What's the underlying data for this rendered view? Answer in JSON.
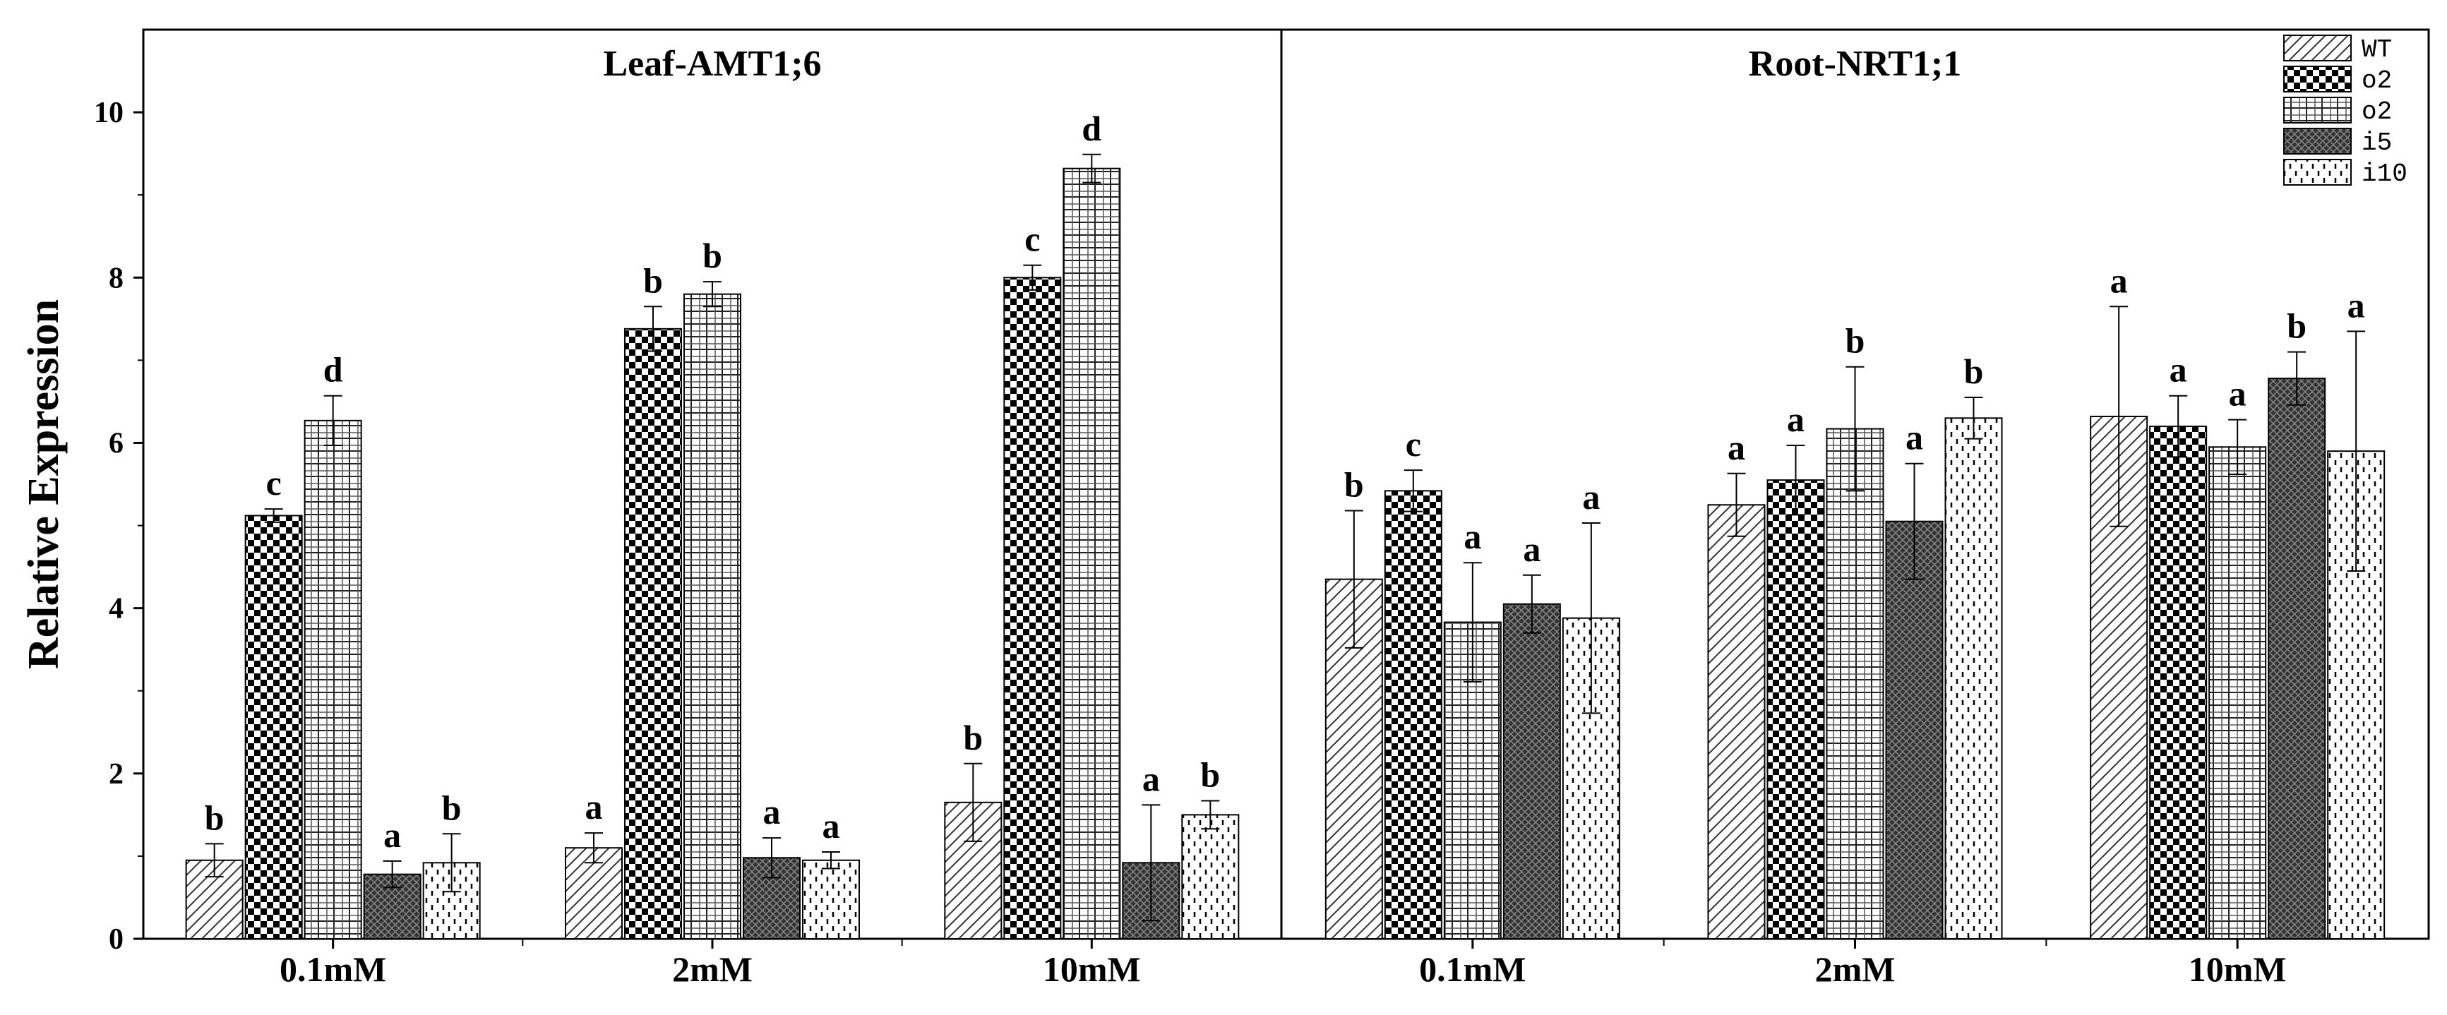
{
  "chart_data": {
    "type": "bar",
    "ylabel": "Relative Expression",
    "ylim": [
      0,
      11
    ],
    "yticks": [
      0,
      2,
      4,
      6,
      8,
      10
    ],
    "categories": [
      "0.1mM",
      "2mM",
      "10mM"
    ],
    "legend": [
      "WT",
      "o2",
      "o2",
      "i5",
      "i10"
    ],
    "legend_position": "top-right",
    "panels": [
      {
        "title": "Leaf-AMT1;6",
        "series": [
          {
            "name": "WT",
            "values": [
              0.95,
              1.1,
              1.65
            ],
            "errors": [
              0.2,
              0.18,
              0.47
            ],
            "labels": [
              "b",
              "a",
              "b"
            ]
          },
          {
            "name": "o2",
            "values": [
              5.12,
              7.38,
              8.0
            ],
            "errors": [
              0.08,
              0.27,
              0.15
            ],
            "labels": [
              "c",
              "b",
              "c"
            ]
          },
          {
            "name": "o2",
            "values": [
              6.27,
              7.8,
              9.32
            ],
            "errors": [
              0.3,
              0.15,
              0.17
            ],
            "labels": [
              "d",
              "b",
              "d"
            ]
          },
          {
            "name": "i5",
            "values": [
              0.78,
              0.98,
              0.92
            ],
            "errors": [
              0.16,
              0.24,
              0.7
            ],
            "labels": [
              "a",
              "a",
              "a"
            ]
          },
          {
            "name": "i10",
            "values": [
              0.92,
              0.95,
              1.5
            ],
            "errors": [
              0.35,
              0.1,
              0.17
            ],
            "labels": [
              "b",
              "a",
              "b"
            ]
          }
        ]
      },
      {
        "title": "Root-NRT1;1",
        "series": [
          {
            "name": "WT",
            "values": [
              4.35,
              5.25,
              6.32
            ],
            "errors": [
              0.83,
              0.38,
              1.33
            ],
            "labels": [
              "b",
              "a",
              "a"
            ]
          },
          {
            "name": "o2",
            "values": [
              5.42,
              5.55,
              6.2
            ],
            "errors": [
              0.25,
              0.42,
              0.37
            ],
            "labels": [
              "c",
              "a",
              "a"
            ]
          },
          {
            "name": "o2",
            "values": [
              3.83,
              6.17,
              5.95
            ],
            "errors": [
              0.72,
              0.75,
              0.33
            ],
            "labels": [
              "a",
              "b",
              "a"
            ]
          },
          {
            "name": "i5",
            "values": [
              4.05,
              5.05,
              6.78
            ],
            "errors": [
              0.35,
              0.7,
              0.32
            ],
            "labels": [
              "a",
              "a",
              "b"
            ]
          },
          {
            "name": "i10",
            "values": [
              3.88,
              6.3,
              5.9
            ],
            "errors": [
              1.15,
              0.25,
              1.45
            ],
            "labels": [
              "a",
              "b",
              "a"
            ]
          }
        ]
      }
    ]
  }
}
